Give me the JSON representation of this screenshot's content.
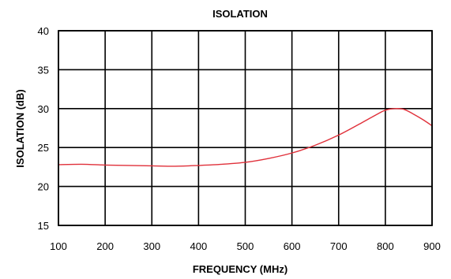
{
  "chart_data": {
    "type": "line",
    "title": "ISOLATION",
    "xlabel": "FREQUENCY (MHz)",
    "ylabel": "ISOLATION (dB)",
    "xlim": [
      100,
      900
    ],
    "ylim": [
      15,
      40
    ],
    "x_ticks": [
      100,
      200,
      300,
      400,
      500,
      600,
      700,
      800,
      900
    ],
    "y_ticks": [
      15,
      20,
      25,
      30,
      35,
      40
    ],
    "grid": true,
    "legend": "none",
    "series": [
      {
        "color": "#e0303a",
        "x": [
          100,
          150,
          200,
          250,
          300,
          350,
          400,
          450,
          500,
          550,
          600,
          650,
          700,
          750,
          780,
          800,
          820,
          840,
          860,
          880,
          900
        ],
        "y": [
          22.8,
          22.85,
          22.75,
          22.7,
          22.65,
          22.6,
          22.7,
          22.85,
          23.1,
          23.6,
          24.3,
          25.3,
          26.6,
          28.2,
          29.2,
          29.8,
          30.0,
          29.9,
          29.3,
          28.6,
          27.8
        ]
      }
    ]
  }
}
